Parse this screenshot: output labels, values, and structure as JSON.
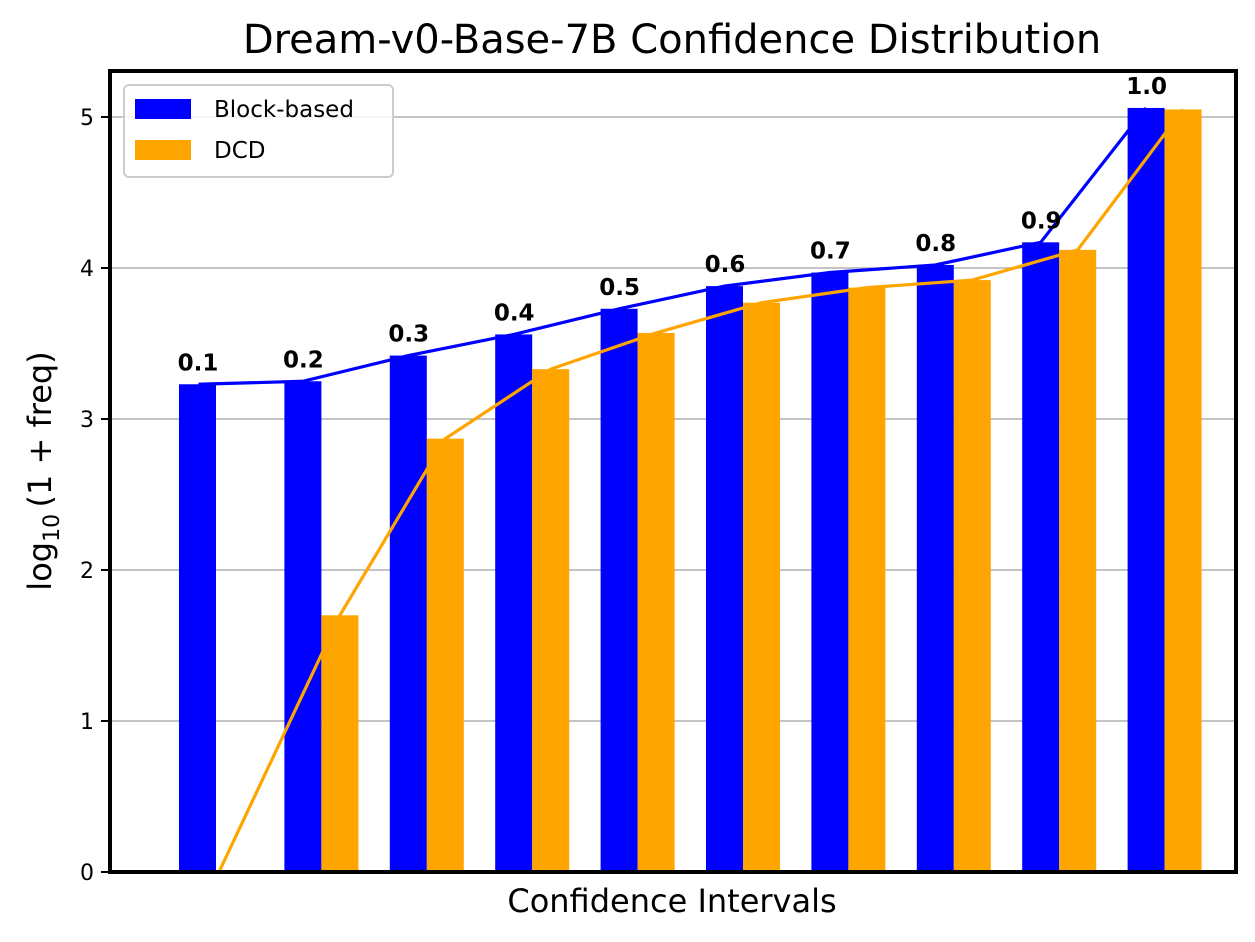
{
  "chart_data": {
    "type": "bar",
    "title": "Dream-v0-Base-7B Confidence Distribution",
    "xlabel": "Confidence Intervals",
    "ylabel": "log10 (1 + freq)",
    "ylim": [
      0,
      5.3
    ],
    "yticks": [
      0,
      1,
      2,
      3,
      4,
      5
    ],
    "grid": "y",
    "legend_position": "top-left",
    "categories": [
      "0.1",
      "0.2",
      "0.3",
      "0.4",
      "0.5",
      "0.6",
      "0.7",
      "0.8",
      "0.9",
      "1.0"
    ],
    "series": [
      {
        "name": "Block-based",
        "color": "#0000ff",
        "values": [
          3.23,
          3.25,
          3.42,
          3.56,
          3.73,
          3.88,
          3.97,
          4.02,
          4.17,
          5.06
        ]
      },
      {
        "name": "DCD",
        "color": "#ffa500",
        "values": [
          0.0,
          1.7,
          2.87,
          3.33,
          3.57,
          3.77,
          3.87,
          3.92,
          4.12,
          5.05
        ]
      }
    ]
  }
}
